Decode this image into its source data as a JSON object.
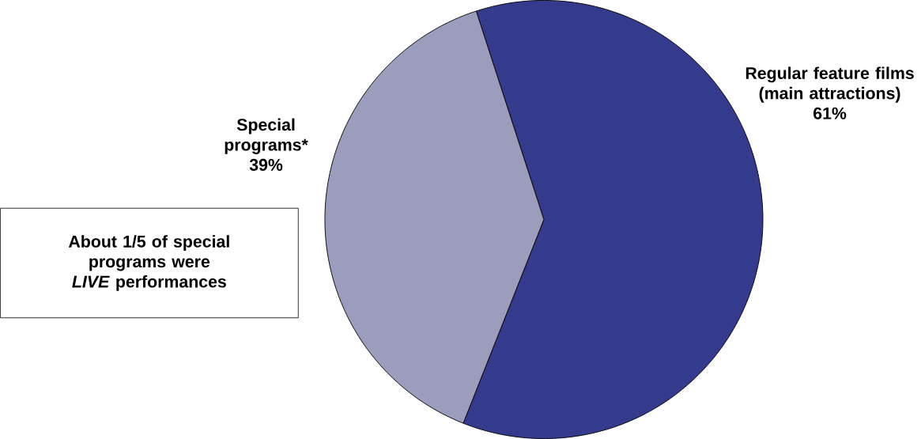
{
  "chart_data": {
    "type": "pie",
    "categories": [
      "Regular feature films (main attractions)",
      "Special programs*"
    ],
    "values": [
      61,
      39
    ],
    "value_labels": [
      "61%",
      "39%"
    ],
    "colors": [
      "#353a8c",
      "#9c9cbd"
    ],
    "annotations": [
      "About 1/5 of special programs were *LIVE* performances"
    ]
  }
}
